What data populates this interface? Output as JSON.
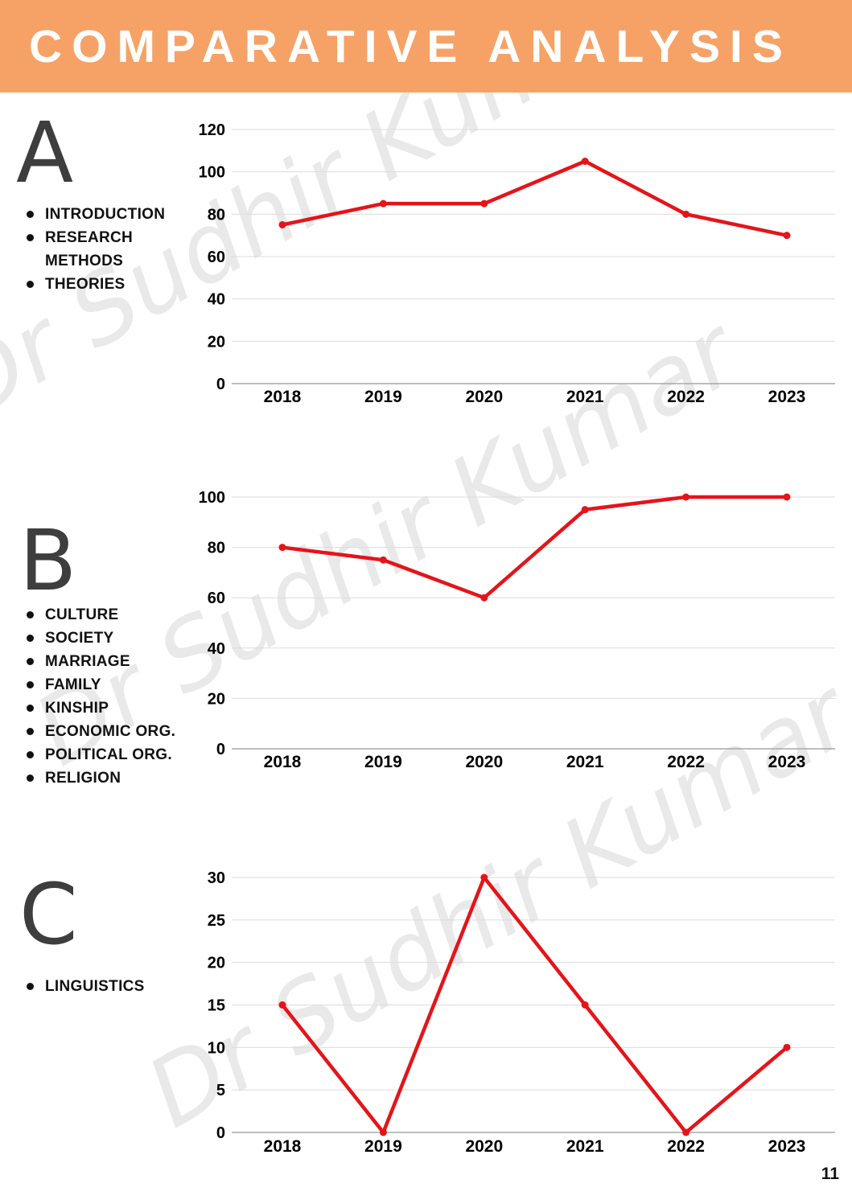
{
  "page": {
    "title": "COMPARATIVE ANALYSIS",
    "page_number": "11",
    "watermark_text": "Dr Sudhir Kumar",
    "accent_color": "#f6a266",
    "line_color": "#e51419",
    "grid_color": "#dcdcdc",
    "axis_color": "#a8a8a8",
    "letter_color": "#3e3e3e"
  },
  "sections": [
    {
      "letter": "A",
      "bullets": [
        "INTRODUCTION",
        "RESEARCH METHODS",
        "THEORIES"
      ]
    },
    {
      "letter": "B",
      "bullets": [
        "CULTURE",
        "SOCIETY",
        "MARRIAGE",
        "FAMILY",
        "KINSHIP",
        "ECONOMIC ORG.",
        "POLITICAL ORG.",
        "RELIGION"
      ]
    },
    {
      "letter": "C",
      "bullets": [
        "LINGUISTICS"
      ]
    }
  ],
  "chart_data": [
    {
      "type": "line",
      "section": "A",
      "categories": [
        "2018",
        "2019",
        "2020",
        "2021",
        "2022",
        "2023"
      ],
      "values": [
        75,
        85,
        85,
        105,
        80,
        70
      ],
      "ylim": [
        0,
        120
      ],
      "yticks": [
        0,
        20,
        40,
        60,
        80,
        100,
        120
      ],
      "grid": true,
      "legend": "none",
      "line_color": "#e51419",
      "marker": "circle"
    },
    {
      "type": "line",
      "section": "B",
      "categories": [
        "2018",
        "2019",
        "2020",
        "2021",
        "2022",
        "2023"
      ],
      "values": [
        80,
        75,
        60,
        95,
        100,
        100
      ],
      "ylim": [
        0,
        100
      ],
      "yticks": [
        0,
        20,
        40,
        60,
        80,
        100
      ],
      "grid": true,
      "legend": "none",
      "line_color": "#e51419",
      "marker": "circle"
    },
    {
      "type": "line",
      "section": "C",
      "categories": [
        "2018",
        "2019",
        "2020",
        "2021",
        "2022",
        "2023"
      ],
      "values": [
        15,
        0,
        30,
        15,
        0,
        10
      ],
      "ylim": [
        0,
        30
      ],
      "yticks": [
        0,
        5,
        10,
        15,
        20,
        25,
        30
      ],
      "grid": true,
      "legend": "none",
      "line_color": "#e51419",
      "marker": "circle"
    }
  ]
}
